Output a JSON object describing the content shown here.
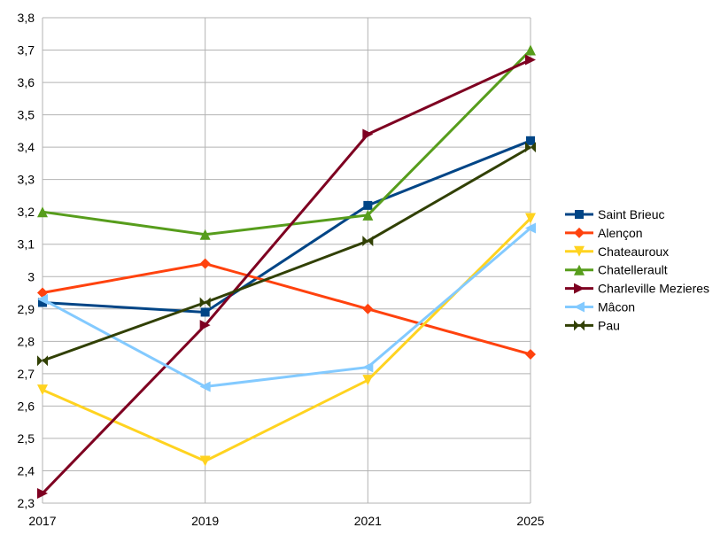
{
  "chart_data": {
    "type": "line",
    "categories": [
      "2017",
      "2019",
      "2021",
      "2025"
    ],
    "ylim": [
      2.3,
      3.8
    ],
    "yticks": [
      "2,3",
      "2,4",
      "2,5",
      "2,6",
      "2,7",
      "2,8",
      "2,9",
      "3",
      "3,1",
      "3,2",
      "3,3",
      "3,4",
      "3,5",
      "3,6",
      "3,7",
      "3,8"
    ],
    "grid": true,
    "legend": "right",
    "series": [
      {
        "name": "Saint Brieuc",
        "color": "#004586",
        "marker": "square",
        "values": [
          2.92,
          2.89,
          3.22,
          3.42
        ]
      },
      {
        "name": "Alençon",
        "color": "#ff420e",
        "marker": "diamond",
        "values": [
          2.95,
          3.04,
          2.9,
          2.76
        ]
      },
      {
        "name": "Chateauroux",
        "color": "#ffd320",
        "marker": "triangle-down",
        "values": [
          2.65,
          2.43,
          2.68,
          3.18
        ]
      },
      {
        "name": "Chatellerault",
        "color": "#579d1c",
        "marker": "triangle-up",
        "values": [
          3.2,
          3.13,
          3.19,
          3.7
        ]
      },
      {
        "name": "Charleville Mezieres",
        "color": "#7e0021",
        "marker": "triangle-right",
        "values": [
          2.33,
          2.85,
          3.44,
          3.67
        ]
      },
      {
        "name": "Mâcon",
        "color": "#83caff",
        "marker": "triangle-left",
        "values": [
          2.93,
          2.66,
          2.72,
          3.15
        ]
      },
      {
        "name": "Pau",
        "color": "#314004",
        "marker": "bowtie",
        "values": [
          2.74,
          2.92,
          3.11,
          3.4
        ]
      }
    ]
  }
}
